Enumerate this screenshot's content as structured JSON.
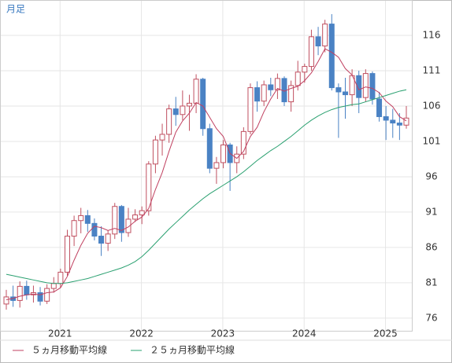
{
  "chart_data": {
    "type": "candlestick",
    "title": "月足",
    "categories": [
      null,
      null,
      null,
      null,
      null,
      null,
      null,
      "2021",
      null,
      null,
      null,
      null,
      null,
      null,
      null,
      null,
      null,
      null,
      null,
      "2022",
      null,
      null,
      null,
      null,
      null,
      null,
      null,
      null,
      null,
      null,
      null,
      "2023",
      null,
      null,
      null,
      null,
      null,
      null,
      null,
      null,
      null,
      null,
      null,
      "2024",
      null,
      null,
      null,
      null,
      null,
      null,
      null,
      null,
      null,
      null,
      null,
      "2025",
      null,
      null,
      null,
      null
    ],
    "ohlc": {
      "open": [
        78.0,
        79.0,
        78.5,
        80.5,
        79.3,
        79.6,
        78.4,
        80.2,
        80.9,
        82.5,
        87.6,
        89.8,
        90.5,
        89.4,
        87.6,
        86.6,
        87.9,
        91.8,
        88.1,
        90.0,
        90.6,
        91.2,
        97.8,
        101.2,
        102.0,
        105.6,
        104.8,
        106.0,
        106.4,
        109.8,
        102.8,
        97.2,
        98.0,
        100.5,
        98.0,
        99.2,
        102.4,
        108.6,
        106.7,
        109.0,
        108.3,
        109.9,
        106.6,
        108.9,
        110.8,
        111.6,
        115.8,
        114.5,
        117.6,
        108.6,
        108.0,
        107.6,
        110.3,
        107.2,
        110.6,
        107.0,
        104.5,
        104.0,
        103.6,
        103.3
      ],
      "high": [
        80.0,
        80.6,
        81.2,
        81.3,
        80.6,
        80.4,
        80.8,
        81.8,
        83.0,
        88.5,
        90.5,
        91.6,
        91.3,
        90.1,
        89.0,
        88.4,
        92.3,
        92.0,
        91.6,
        91.4,
        91.8,
        98.2,
        101.8,
        103.5,
        106.2,
        107.3,
        108.2,
        107.6,
        110.5,
        110.0,
        103.5,
        98.8,
        101.2,
        100.8,
        100.3,
        103.0,
        109.2,
        109.5,
        109.6,
        110.0,
        110.6,
        110.2,
        109.6,
        112.4,
        112.0,
        116.8,
        117.2,
        118.2,
        119.0,
        109.2,
        110.0,
        111.2,
        111.0,
        111.2,
        110.9,
        108.0,
        106.0,
        105.6,
        105.0,
        106.0
      ],
      "low": [
        77.2,
        77.6,
        77.5,
        78.6,
        78.2,
        77.8,
        78.0,
        79.6,
        80.3,
        82.0,
        86.2,
        88.0,
        88.2,
        87.0,
        84.8,
        85.5,
        87.2,
        86.8,
        87.5,
        89.6,
        89.3,
        90.5,
        96.5,
        99.0,
        100.8,
        103.2,
        104.0,
        102.5,
        105.0,
        101.8,
        96.5,
        95.0,
        97.2,
        94.0,
        96.5,
        98.5,
        102.0,
        105.2,
        106.0,
        107.4,
        107.0,
        106.0,
        105.2,
        108.2,
        109.3,
        111.0,
        113.2,
        113.6,
        108.2,
        101.5,
        104.2,
        106.0,
        105.0,
        106.6,
        106.2,
        103.8,
        101.2,
        101.5,
        101.2,
        102.8
      ],
      "close": [
        79.0,
        78.5,
        80.5,
        79.3,
        79.6,
        78.4,
        80.2,
        80.9,
        82.5,
        87.6,
        89.8,
        90.5,
        89.4,
        87.6,
        86.6,
        87.9,
        91.8,
        88.1,
        90.0,
        90.6,
        91.2,
        97.8,
        101.2,
        102.0,
        105.6,
        104.8,
        106.0,
        106.4,
        109.8,
        102.8,
        97.2,
        98.0,
        100.5,
        98.0,
        99.2,
        102.4,
        108.6,
        106.7,
        109.0,
        108.3,
        109.9,
        106.6,
        108.9,
        110.8,
        111.6,
        115.8,
        114.5,
        117.6,
        108.6,
        108.0,
        107.6,
        110.3,
        107.2,
        110.6,
        107.0,
        104.5,
        104.0,
        103.6,
        103.3,
        104.3
      ],
      "up_color": "#c05060",
      "down_color": "#4a82c4"
    },
    "series": [
      {
        "name": "５ヵ月移動平均線",
        "color": "#c04060",
        "values": [
          78.6,
          78.8,
          79.1,
          79.3,
          79.4,
          79.3,
          79.6,
          79.7,
          80.3,
          81.9,
          84.2,
          86.3,
          88.0,
          89.0,
          88.8,
          88.4,
          88.7,
          88.4,
          88.9,
          89.7,
          90.3,
          91.5,
          94.2,
          96.6,
          99.6,
          102.3,
          103.9,
          105.0,
          106.5,
          106.0,
          104.4,
          102.8,
          101.7,
          99.3,
          98.6,
          99.6,
          101.7,
          103.0,
          105.2,
          107.0,
          108.5,
          108.1,
          108.5,
          108.8,
          109.6,
          110.7,
          112.3,
          114.1,
          113.6,
          112.9,
          111.3,
          110.4,
          108.3,
          108.7,
          108.5,
          107.9,
          106.7,
          105.9,
          104.5,
          103.9
        ]
      },
      {
        "name": "２５ヵ月移動平均線",
        "color": "#2aa070",
        "values": [
          82.2,
          82.0,
          81.8,
          81.6,
          81.4,
          81.2,
          81.0,
          80.9,
          80.9,
          81.0,
          81.2,
          81.4,
          81.6,
          81.9,
          82.2,
          82.5,
          82.8,
          83.1,
          83.5,
          84.0,
          84.7,
          85.6,
          86.6,
          87.6,
          88.6,
          89.5,
          90.4,
          91.3,
          92.1,
          92.9,
          93.6,
          94.2,
          94.8,
          95.4,
          96.0,
          96.7,
          97.5,
          98.3,
          99.0,
          99.7,
          100.3,
          101.0,
          101.7,
          102.5,
          103.3,
          104.0,
          104.6,
          105.1,
          105.5,
          105.8,
          106.0,
          106.2,
          106.3,
          106.6,
          106.9,
          107.2,
          107.5,
          107.8,
          108.1,
          108.3
        ]
      }
    ],
    "ylim": [
      74.1,
      121
    ],
    "yticks": [
      76,
      81,
      86,
      91,
      96,
      101,
      106,
      111,
      116
    ],
    "grid": true
  }
}
